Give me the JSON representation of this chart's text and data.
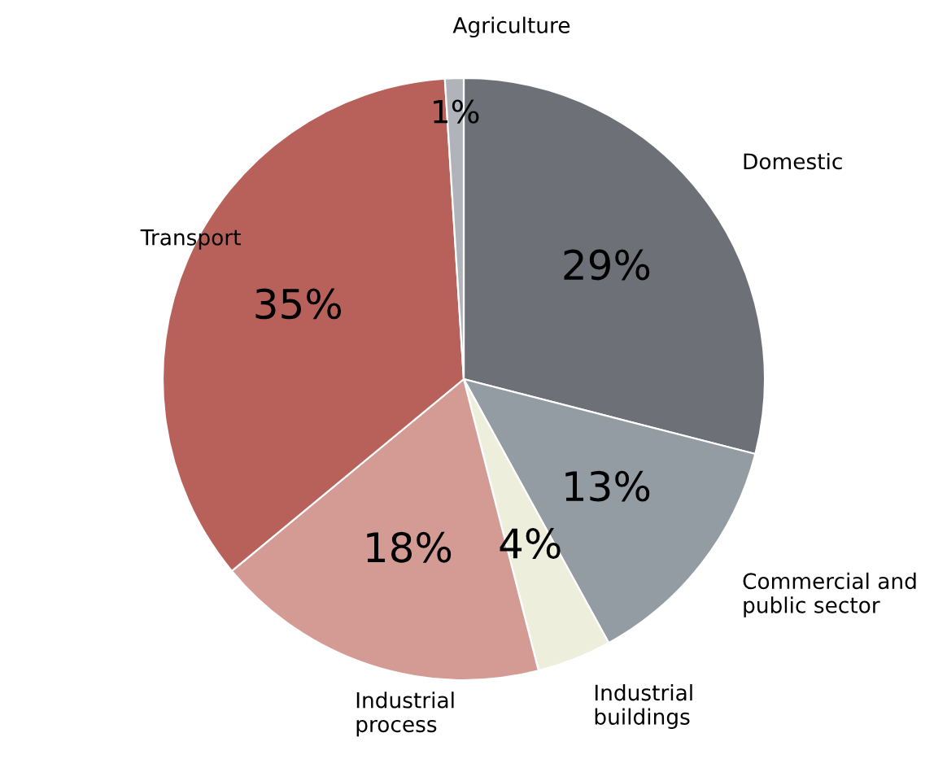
{
  "chart_data": {
    "type": "pie",
    "categories": [
      "Domestic",
      "Commercial and\npublic sector",
      "Industrial\nbuildings",
      "Industrial\nprocess",
      "Transport",
      "Agriculture"
    ],
    "values": [
      29,
      13,
      4,
      18,
      35,
      1
    ],
    "value_labels": [
      "29%",
      "13%",
      "4%",
      "18%",
      "35%",
      "1%"
    ],
    "colors": [
      "#6e7077",
      "#939ba3",
      "#eeeedc",
      "#d49a94",
      "#b8615b",
      "#b0b4ba"
    ]
  }
}
